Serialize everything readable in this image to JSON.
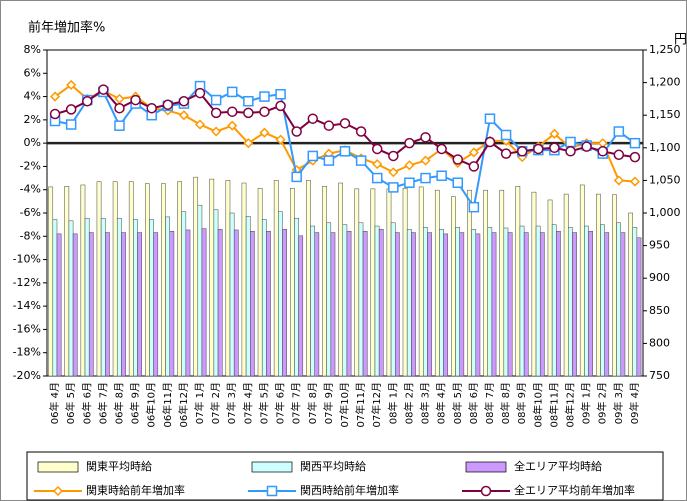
{
  "chart_data": {
    "type": "bar_line",
    "title": "前年増加率%",
    "y2_title": "円",
    "categories": [
      "06年 4月",
      "06年 5月",
      "06年 6月",
      "06年 7月",
      "06年 8月",
      "06年 9月",
      "06年10月",
      "06年11月",
      "06年12月",
      "07年 1月",
      "07年 2月",
      "07年 3月",
      "07年 4月",
      "07年 5月",
      "07年 6月",
      "07年 7月",
      "07年 8月",
      "07年 9月",
      "07年10月",
      "07年11月",
      "07年12月",
      "08年 1月",
      "08年 2月",
      "08年 3月",
      "08年 4月",
      "08年 5月",
      "08年 6月",
      "08年 7月",
      "08年 8月",
      "08年 9月",
      "08年10月",
      "08年11月",
      "08年12月",
      "09年 1月",
      "09年 2月",
      "09年 3月",
      "09年 4月"
    ],
    "series": [
      {
        "name": "関東平均時給",
        "kind": "bar",
        "axis": "y2",
        "color": "#ffffcc",
        "values": [
          1040,
          1041,
          1043,
          1048,
          1048,
          1048,
          1045,
          1045,
          1048,
          1055,
          1052,
          1050,
          1046,
          1038,
          1050,
          1038,
          1050,
          1041,
          1046,
          1037,
          1037,
          1037,
          1038,
          1040,
          1035,
          1025,
          1035,
          1035,
          1035,
          1041,
          1032,
          1020,
          1029,
          1043,
          1029,
          1028,
          1000
        ]
      },
      {
        "name": "関西平均時給",
        "kind": "bar",
        "axis": "y2",
        "color": "#ccffff",
        "values": [
          990,
          988,
          992,
          992,
          992,
          990,
          990,
          994,
          1002,
          1012,
          1005,
          1000,
          995,
          990,
          1002,
          992,
          980,
          985,
          982,
          985,
          980,
          985,
          975,
          978,
          975,
          978,
          975,
          978,
          977,
          980,
          980,
          982,
          978,
          980,
          982,
          985,
          978
        ]
      },
      {
        "name": "全エリア平均時給",
        "kind": "bar",
        "axis": "y2",
        "color": "#cc99ff",
        "values": [
          968,
          968,
          970,
          970,
          970,
          970,
          970,
          972,
          974,
          976,
          975,
          974,
          972,
          972,
          975,
          965,
          970,
          970,
          972,
          972,
          975,
          970,
          970,
          970,
          968,
          970,
          968,
          970,
          970,
          970,
          970,
          972,
          970,
          972,
          970,
          970,
          962
        ]
      },
      {
        "name": "関東時給前年増加率",
        "kind": "line",
        "marker": "diamond",
        "color": "#ff9900",
        "values": [
          4.0,
          5.0,
          3.8,
          4.5,
          3.8,
          4.0,
          3.0,
          2.8,
          2.4,
          1.6,
          1.0,
          1.5,
          0,
          0.9,
          0.3,
          -2.3,
          -1.5,
          -0.9,
          -0.6,
          -1.3,
          -1.8,
          -2.5,
          -1.9,
          -1.5,
          -0.5,
          -1.7,
          -0.8,
          0.2,
          0.2,
          -1.2,
          -0.3,
          0.8,
          -0.4,
          0,
          0,
          -3.2,
          -3.3
        ]
      },
      {
        "name": "関西時給前年増加率",
        "kind": "line",
        "marker": "square",
        "color": "#3399ff",
        "values": [
          1.9,
          1.6,
          3.7,
          4.4,
          1.5,
          3.4,
          2.4,
          3.2,
          3.4,
          4.9,
          3.7,
          4.4,
          3.6,
          4.0,
          4.2,
          -2.9,
          -1.1,
          -1.5,
          -0.7,
          -1.5,
          -3.0,
          -3.8,
          -3.4,
          -3.0,
          -2.8,
          -3.4,
          -5.5,
          2.1,
          0.7,
          -0.7,
          -0.6,
          -0.6,
          0.1,
          -0.2,
          -0.9,
          1.0,
          0
        ]
      },
      {
        "name": "全エリア平均前年増加率",
        "kind": "line",
        "marker": "circle",
        "color": "#800040",
        "values": [
          2.5,
          2.9,
          3.6,
          4.6,
          3.0,
          3.7,
          3.0,
          3.3,
          3.6,
          4.3,
          2.6,
          2.7,
          2.6,
          2.7,
          3.2,
          1.0,
          2.1,
          1.5,
          1.7,
          1.0,
          -0.5,
          -1.1,
          0,
          0.5,
          -0.5,
          -1.4,
          -2.0,
          0.1,
          -0.9,
          -0.7,
          -0.5,
          -0.4,
          -0.7,
          -0.3,
          -0.7,
          -1.0,
          -1.2
        ]
      }
    ],
    "ylim": [
      -20,
      8
    ],
    "yticks": [
      {
        "value": -20,
        "label": "-20%"
      },
      {
        "value": -18,
        "label": "-18%"
      },
      {
        "value": -16,
        "label": "-16%"
      },
      {
        "value": -14,
        "label": "-14%"
      },
      {
        "value": -12,
        "label": "-12%"
      },
      {
        "value": -10,
        "label": "-10%"
      },
      {
        "value": -8,
        "label": "-8%"
      },
      {
        "value": -6,
        "label": "-6%"
      },
      {
        "value": -4,
        "label": "-4%"
      },
      {
        "value": -2,
        "label": "-2%"
      },
      {
        "value": 0,
        "label": "0%"
      },
      {
        "value": 2,
        "label": "2%"
      },
      {
        "value": 4,
        "label": "4%"
      },
      {
        "value": 6,
        "label": "6%"
      },
      {
        "value": 8,
        "label": "8%"
      }
    ],
    "y2lim": [
      750,
      1250
    ],
    "y2ticks": [
      750,
      800,
      850,
      900,
      950,
      {
        "value": 1000,
        "label": "1,000"
      },
      {
        "value": 1050,
        "label": "1,050"
      },
      {
        "value": 1100,
        "label": "1,100"
      },
      {
        "value": 1150,
        "label": "1,150"
      },
      {
        "value": 1200,
        "label": "1,200"
      },
      {
        "value": 1250,
        "label": "1,250"
      }
    ],
    "grid": false
  }
}
